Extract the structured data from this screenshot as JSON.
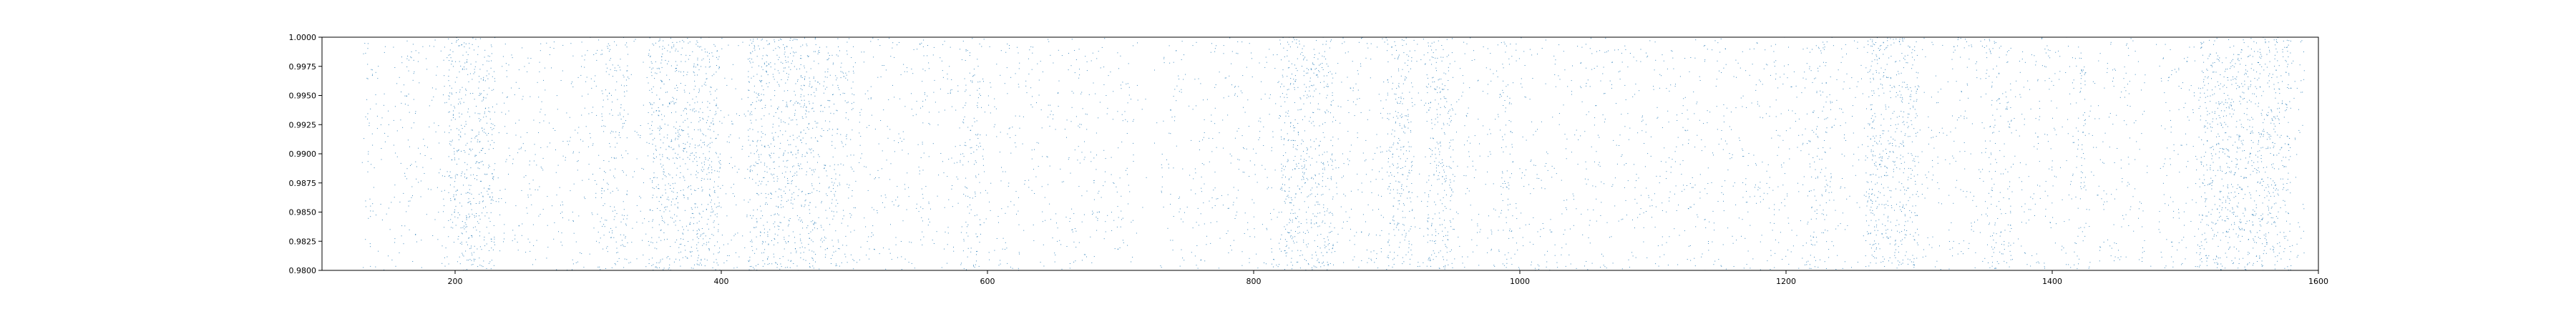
{
  "chart_data": {
    "type": "scatter",
    "title": "",
    "xlabel": "",
    "ylabel": "",
    "xlim": [
      100,
      1600
    ],
    "ylim": [
      0.98,
      1.0
    ],
    "grid": false,
    "x_ticks": [
      "200",
      "400",
      "600",
      "800",
      "1000",
      "1200",
      "1400",
      "1600"
    ],
    "y_ticks": [
      "0.9800",
      "0.9825",
      "0.9850",
      "0.9875",
      "0.9900",
      "0.9925",
      "0.9950",
      "0.9975",
      "1.0000"
    ],
    "series": [
      {
        "color": "#1f77b4",
        "marker_size": 1,
        "x_range": [
          130,
          1590
        ],
        "approx_point_count": 9000,
        "dense_x_clusters": [
          {
            "x": [
              195,
              230
            ],
            "density": "high"
          },
          {
            "x": [
              310,
              330
            ],
            "density": "medium"
          },
          {
            "x": [
              345,
              400
            ],
            "density": "high"
          },
          {
            "x": [
              420,
              470
            ],
            "density": "high"
          },
          {
            "x": [
              470,
              500
            ],
            "density": "medium"
          },
          {
            "x": [
              580,
              595
            ],
            "density": "medium"
          },
          {
            "x": [
              820,
              860
            ],
            "density": "high"
          },
          {
            "x": [
              900,
              920
            ],
            "density": "high"
          },
          {
            "x": [
              930,
              950
            ],
            "density": "high"
          },
          {
            "x": [
              985,
              995
            ],
            "density": "medium"
          },
          {
            "x": [
              1215,
              1235
            ],
            "density": "medium"
          },
          {
            "x": [
              1260,
              1300
            ],
            "density": "high"
          },
          {
            "x": [
              1350,
              1370
            ],
            "density": "medium"
          },
          {
            "x": [
              1415,
              1425
            ],
            "density": "medium"
          },
          {
            "x": [
              1510,
              1580
            ],
            "density": "high"
          }
        ],
        "sparse_x_gaps": [
          {
            "x": [
              710,
              730
            ]
          },
          {
            "x": [
              1470,
              1480
            ]
          }
        ]
      }
    ]
  }
}
